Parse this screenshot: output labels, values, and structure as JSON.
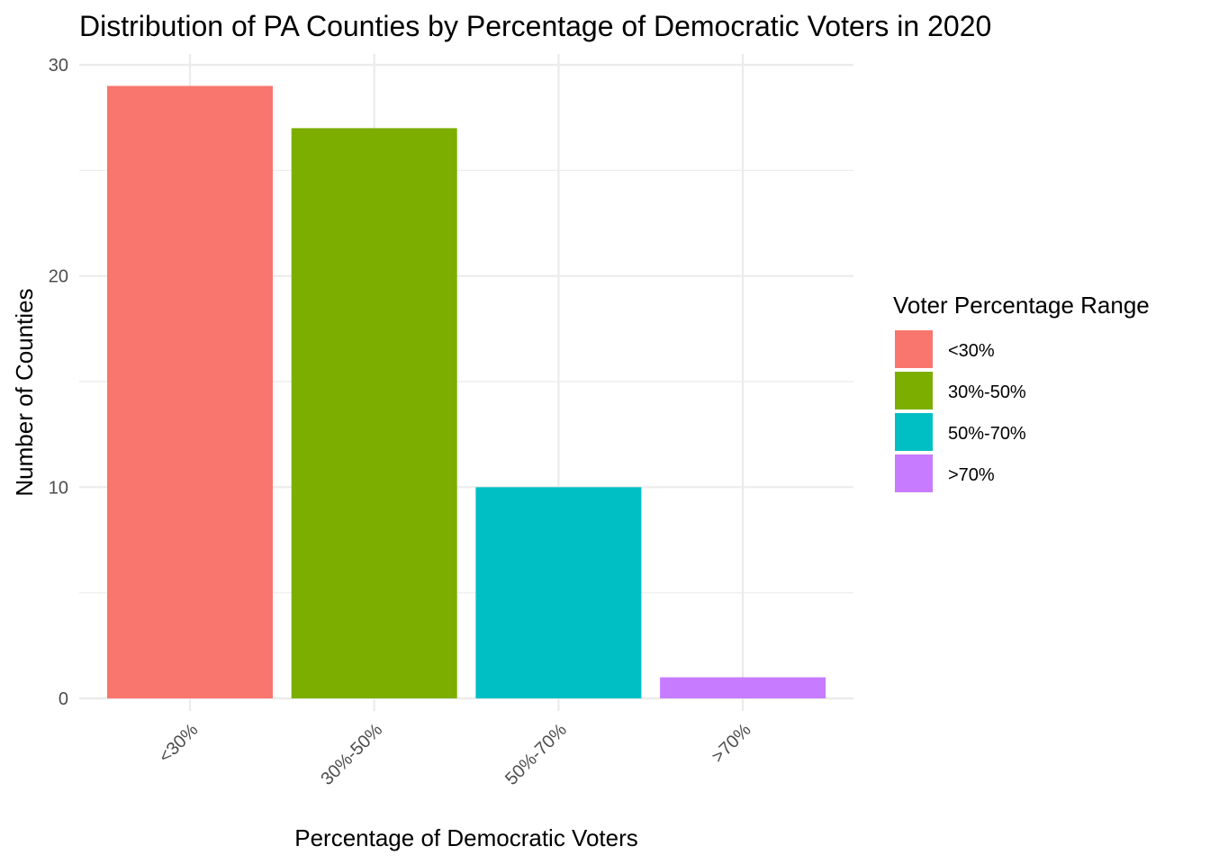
{
  "chart_data": {
    "type": "bar",
    "title": "Distribution of PA Counties by Percentage of Democratic Voters in 2020",
    "xlabel": "Percentage of Democratic Voters",
    "ylabel": "Number of Counties",
    "categories": [
      "<30%",
      "30%-50%",
      "50%-70%",
      ">70%"
    ],
    "values": [
      29,
      27,
      10,
      1
    ],
    "colors": [
      "#F8766D",
      "#7CAE00",
      "#00BFC4",
      "#C77CFF"
    ],
    "ylim": [
      0,
      30
    ],
    "yticks": [
      0,
      10,
      20,
      30
    ],
    "grid": true,
    "legend": {
      "title": "Voter Percentage Range",
      "position": "right",
      "entries": [
        "<30%",
        "30%-50%",
        "50%-70%",
        ">70%"
      ]
    }
  }
}
